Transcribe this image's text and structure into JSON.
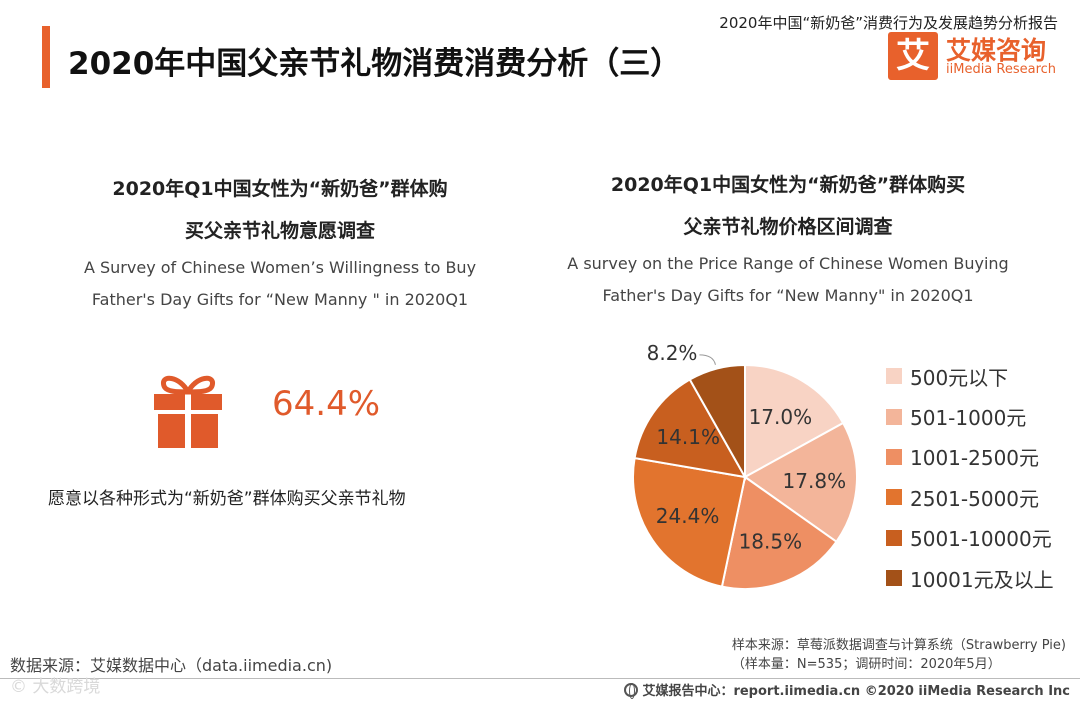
{
  "header": {
    "report_title": "2020年中国“新奶爸”消费行为及发展趋势分析报告",
    "page_title": "2020年中国父亲节礼物消费消费分析（三）"
  },
  "logo": {
    "mark": "艾",
    "name_cn": "艾媒咨询",
    "name_en": "iiMedia Research",
    "brand_color": "#e8612c"
  },
  "left": {
    "title_line1": "2020年Q1中国女性为“新奶爸”群体购",
    "title_line2": "买父亲节礼物意愿调查",
    "subtitle_line1": "A Survey of Chinese Women’s Willingness to Buy",
    "subtitle_line2": "Father's Day Gifts for “New Manny \" in 2020Q1",
    "icon": "gift-icon",
    "percent": "64.4%",
    "caption": "愿意以各种形式为“新奶爸”群体购买父亲节礼物"
  },
  "right": {
    "title_line1": "2020年Q1中国女性为“新奶爸”群体购买",
    "title_line2": "父亲节礼物价格区间调查",
    "subtitle_line1": "A survey on the Price Range of Chinese Women Buying",
    "subtitle_line2": "Father's Day Gifts for “New Manny\" in 2020Q1"
  },
  "chart_data": {
    "type": "pie",
    "categories": [
      "500元以下",
      "501-1000元",
      "1001-2500元",
      "2501-5000元",
      "5001-10000元",
      "10001元及以上"
    ],
    "values": [
      17.0,
      17.8,
      18.5,
      24.4,
      14.1,
      8.2
    ],
    "labels": [
      "17.0%",
      "17.8%",
      "18.5%",
      "24.4%",
      "14.1%",
      "8.2%"
    ],
    "colors": [
      "#f8d3c4",
      "#f3b59a",
      "#ee8f63",
      "#e2742e",
      "#c85f1f",
      "#a35118"
    ],
    "legend_position": "right"
  },
  "footer": {
    "data_source": "数据来源：艾媒数据中心（data.iimedia.cn)",
    "sample_source": "样本来源：草莓派数据调查与计算系统（Strawberry Pie)",
    "sample_info": "（样本量：N=535；调研时间：2020年5月）",
    "watermark": "© 大数跨境",
    "copyright": "艾媒报告中心：report.iimedia.cn  ©2020  iiMedia Research  Inc"
  }
}
